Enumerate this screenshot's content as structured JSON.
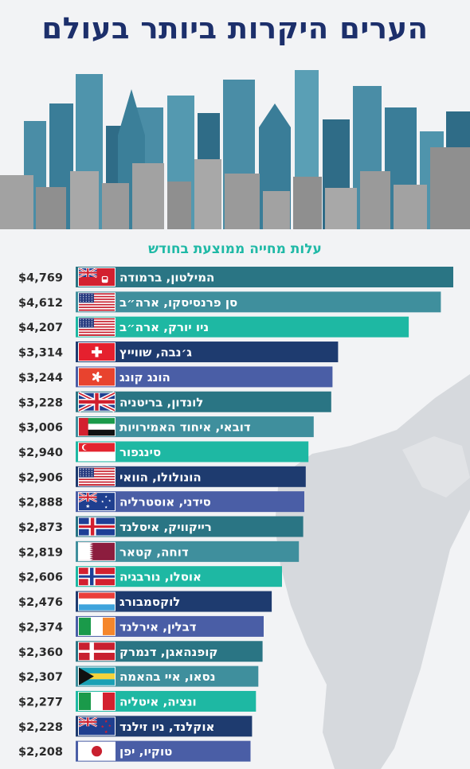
{
  "title": "הערים היקרות ביותר בעולם",
  "subtitle": "עלות מחייה ממוצעת בחודש",
  "colors": {
    "background": "#f2f3f5",
    "title": "#1c2f6b",
    "subtitle": "#1fb9a6",
    "value_text": "#2b2b2b",
    "skyline_blue": "#4a8da6",
    "skyline_dark": "#2f6c87",
    "skyline_gray": "#a2a2a2",
    "bar_teal_dark": "#2a7584",
    "bar_teal": "#3f8f9d",
    "bar_turquoise": "#1eb8a3",
    "bar_navy": "#1e3b6f",
    "bar_periwinkle": "#4a5ea6"
  },
  "chart_data": {
    "type": "bar",
    "orientation": "horizontal",
    "title": "עלות מחייה ממוצעת בחודש",
    "categories": [
      "המילטון, ברמודה",
      "סן פרנסיסקו, ארה״ב",
      "ניו יורק, ארה״ב",
      "ג׳נבה, שווייץ",
      "הונג קונג",
      "לונדון, בריטניה",
      "דובאי, איחוד האמירויות",
      "סינגפור",
      "הונולולו, הוואי",
      "סידני, אוסטרליה",
      "רייקוויק, איסלנד",
      "דוחה, קטאר",
      "אוסלו, נורבגיה",
      "לוקסמבורג",
      "דבלין, אירלנד",
      "קופנהאגן, דנמרק",
      "נסאו, איי בהאמה",
      "ונציה, איטליה",
      "אוקלנד, ניו זילנד",
      "טוקיו, יפן"
    ],
    "values": [
      4769,
      4612,
      4207,
      3314,
      3244,
      3228,
      3006,
      2940,
      2906,
      2888,
      2873,
      2819,
      2606,
      2476,
      2374,
      2360,
      2307,
      2277,
      2228,
      2208
    ],
    "value_labels": [
      "$4,769",
      "$4,612",
      "$4,207",
      "$3,314",
      "$3,244",
      "$3,228",
      "$3,006",
      "$2,940",
      "$2,906",
      "$2,888",
      "$2,873",
      "$2,819",
      "$2,606",
      "$2,476",
      "$2,374",
      "$2,360",
      "$2,307",
      "$2,277",
      "$2,228",
      "$2,208"
    ],
    "bar_colors": [
      "#2a7584",
      "#3f8f9d",
      "#1eb8a3",
      "#1e3b6f",
      "#4a5ea6",
      "#2a7584",
      "#3f8f9d",
      "#1eb8a3",
      "#1e3b6f",
      "#4a5ea6",
      "#2a7584",
      "#3f8f9d",
      "#1eb8a3",
      "#1e3b6f",
      "#4a5ea6",
      "#2a7584",
      "#3f8f9d",
      "#1eb8a3",
      "#1e3b6f",
      "#4a5ea6"
    ],
    "flags": [
      "bermuda",
      "usa",
      "usa",
      "switzerland",
      "hong-kong",
      "uk",
      "uae",
      "singapore",
      "usa",
      "australia",
      "iceland",
      "qatar",
      "norway",
      "luxembourg",
      "ireland",
      "denmark",
      "bahamas",
      "italy",
      "new-zealand",
      "japan"
    ],
    "xlim": [
      0,
      4769
    ],
    "xlabel": "",
    "ylabel": "",
    "grid": false,
    "legend": "none"
  }
}
